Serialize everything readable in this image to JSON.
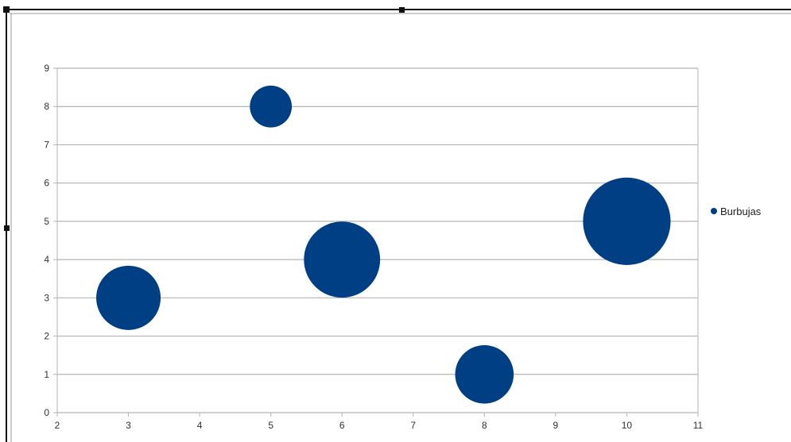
{
  "chart_data": {
    "type": "scatter",
    "subtype": "bubble",
    "title": "",
    "xlabel": "",
    "ylabel": "",
    "xlim": [
      2,
      11
    ],
    "ylim": [
      0,
      9
    ],
    "x_ticks": [
      2,
      3,
      4,
      5,
      6,
      7,
      8,
      9,
      10,
      11
    ],
    "y_ticks": [
      0,
      1,
      2,
      3,
      4,
      5,
      6,
      7,
      8,
      9
    ],
    "grid": {
      "horizontal": true,
      "vertical": false
    },
    "legend_position": "right",
    "series": [
      {
        "name": "Burbujas",
        "color": "#003f84",
        "points": [
          {
            "x": 3,
            "y": 3,
            "size": 4
          },
          {
            "x": 5,
            "y": 8,
            "size": 1.7
          },
          {
            "x": 6,
            "y": 4,
            "size": 5.6
          },
          {
            "x": 8,
            "y": 1,
            "size": 3.3
          },
          {
            "x": 10,
            "y": 5,
            "size": 7.4
          }
        ]
      }
    ]
  },
  "colors": {
    "gridline": "#b3b3b3",
    "axis": "#b3b3b3",
    "tick_label": "#333333",
    "frame": "#111111"
  }
}
